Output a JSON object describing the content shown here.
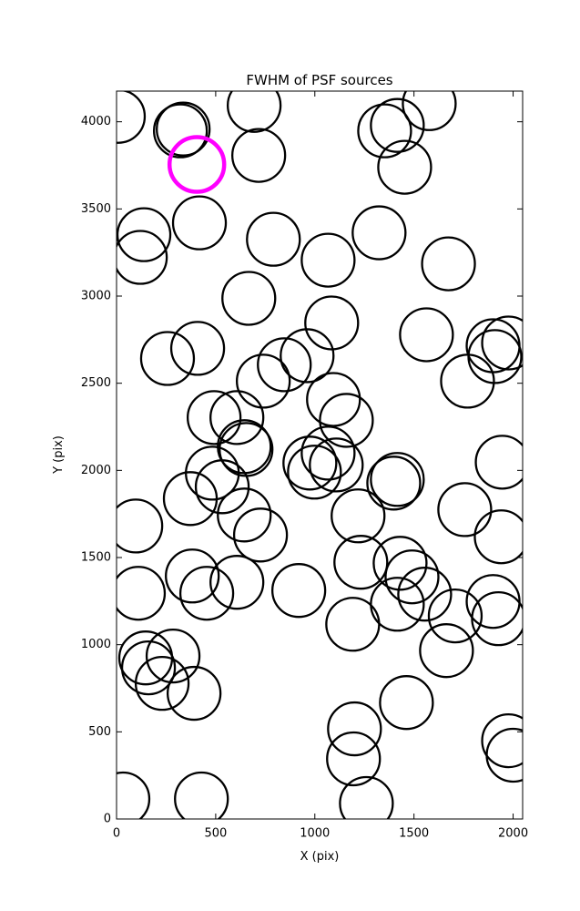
{
  "chart_data": {
    "type": "scatter",
    "title": "FWHM of PSF sources",
    "x_label": "X (pix)",
    "y_label": "Y (pix)",
    "xlim": [
      0,
      2048
    ],
    "ylim": [
      0,
      4176
    ],
    "xticks": [
      0,
      500,
      1000,
      1500,
      2000
    ],
    "yticks": [
      0,
      500,
      1000,
      1500,
      2000,
      2500,
      3000,
      3500,
      4000
    ],
    "series": [
      {
        "color": "#000000",
        "x": [
          9,
          322,
          336,
          694,
          717,
          1577,
          1352,
          1416,
          1453,
          138,
          120,
          418,
          791,
          1067,
          1324,
          1674,
          667,
          1085,
          257,
          409,
          961,
          846,
          740,
          1094,
          1159,
          492,
          607,
          644,
          653,
          975,
          998,
          1067,
          1108,
          483,
          533,
          372,
          644,
          726,
          1218,
          1398,
          1416,
          97,
          1756,
          1945,
          1940,
          1770,
          1563,
          1899,
          1908,
          1977,
          110,
          382,
          455,
          607,
          919,
          1232,
          1430,
          1490,
          1554,
          1416,
          1708,
          1664,
          1191,
          1899,
          1926,
          147,
          285,
          161,
          230,
          391,
          1462,
          1200,
          1195,
          1977,
          2000,
          32,
          428,
          1260
        ],
        "values": [
          4031,
          3948,
          3958,
          4094,
          3807,
          4104,
          3948,
          3979,
          3739,
          3352,
          3222,
          3420,
          3326,
          3206,
          3363,
          3185,
          2987,
          2846,
          2642,
          2700,
          2658,
          2606,
          2512,
          2407,
          2287,
          2303,
          2303,
          2136,
          2120,
          2042,
          1990,
          2099,
          2031,
          1984,
          1906,
          1838,
          1744,
          1629,
          1739,
          1927,
          1948,
          1681,
          1775,
          2047,
          1619,
          2512,
          2778,
          2715,
          2653,
          2731,
          1295,
          1394,
          1295,
          1358,
          1311,
          1473,
          1467,
          1389,
          1290,
          1232,
          1165,
          966,
          1117,
          1248,
          1149,
          924,
          935,
          867,
          778,
          721,
          668,
          517,
          345,
          449,
          366,
          115,
          115,
          89
        ]
      },
      {
        "color": "#ff00ff",
        "x": [
          405
        ],
        "values": [
          3755
        ]
      }
    ]
  }
}
